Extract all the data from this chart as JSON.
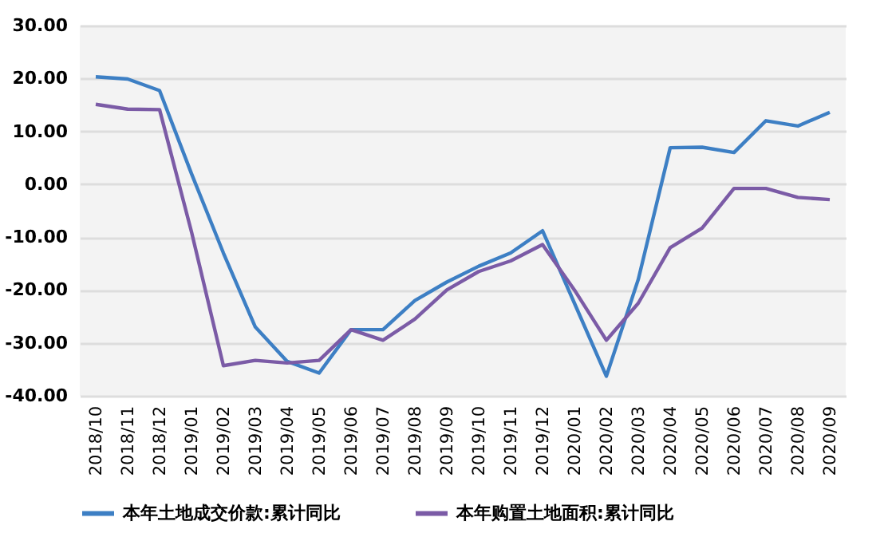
{
  "chart_data": {
    "type": "line",
    "categories": [
      "2018/10",
      "2018/11",
      "2018/12",
      "2019/01",
      "2019/02",
      "2019/03",
      "2019/04",
      "2019/05",
      "2019/06",
      "2019/07",
      "2019/08",
      "2019/09",
      "2019/10",
      "2019/11",
      "2019/12",
      "2020/01",
      "2020/02",
      "2020/03",
      "2020/04",
      "2020/05",
      "2020/06",
      "2020/07",
      "2020/08",
      "2020/09"
    ],
    "series": [
      {
        "name": "本年土地成交价款:累计同比",
        "color": "#3d7fc4",
        "values": [
          20.3,
          19.9,
          17.7,
          2,
          -13,
          -27,
          -33.5,
          -35.7,
          -27.5,
          -27.5,
          -22,
          -18.5,
          -15.5,
          -13,
          -8.8,
          -22.5,
          -36.3,
          -18,
          6.9,
          7,
          6,
          12,
          11,
          13.6
        ]
      },
      {
        "name": "本年购置土地面积:累计同比",
        "color": "#7b5ba6",
        "values": [
          15.1,
          14.2,
          14.1,
          -9,
          -34.3,
          -33.3,
          -33.8,
          -33.3,
          -27.5,
          -29.5,
          -25.5,
          -20,
          -16.5,
          -14.5,
          -11.4,
          -20,
          -29.5,
          -22.5,
          -12,
          -8.3,
          -0.8,
          -0.8,
          -2.5,
          -2.9
        ]
      }
    ],
    "ylim": [
      -40,
      30
    ],
    "yticks": [
      {
        "value": -40,
        "label": "-40.00"
      },
      {
        "value": -30,
        "label": "-30.00"
      },
      {
        "value": -20,
        "label": "-20.00"
      },
      {
        "value": -10,
        "label": "-10.00"
      },
      {
        "value": 0,
        "label": "0.00"
      },
      {
        "value": 10,
        "label": "10.00"
      },
      {
        "value": 20,
        "label": "20.00"
      },
      {
        "value": 30,
        "label": "30.00"
      }
    ],
    "grid": "y",
    "legend": "bottom",
    "marker": "none",
    "line_style": "solid"
  }
}
